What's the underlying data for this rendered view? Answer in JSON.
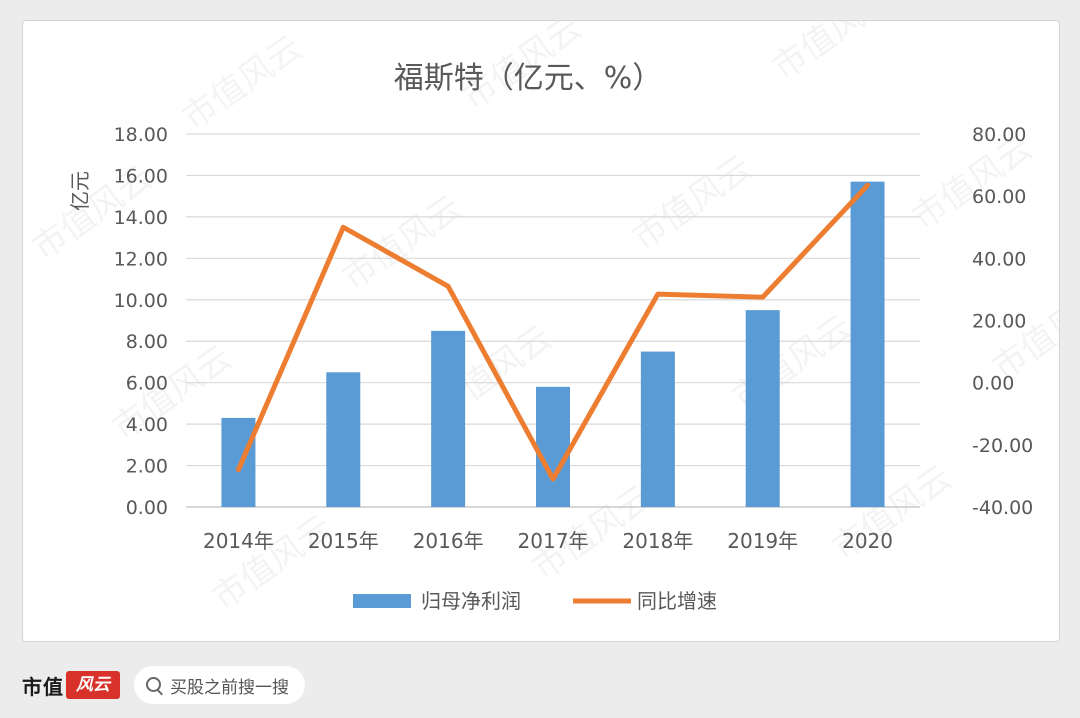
{
  "chart_data": {
    "type": "bar",
    "title": "福斯特（亿元、%）",
    "ylabel": "亿元",
    "y2label": "",
    "categories": [
      "2014年",
      "2015年",
      "2016年",
      "2017年",
      "2018年",
      "2019年",
      "2020"
    ],
    "ylim": [
      0,
      18
    ],
    "yticks": [
      "0.00",
      "2.00",
      "4.00",
      "6.00",
      "8.00",
      "10.00",
      "12.00",
      "14.00",
      "16.00",
      "18.00"
    ],
    "y2lim": [
      -40,
      80
    ],
    "y2ticks": [
      "-40.00",
      "-20.00",
      "0.00",
      "20.00",
      "40.00",
      "60.00",
      "80.00"
    ],
    "grid": true,
    "legend_position": "bottom",
    "series": [
      {
        "name": "归母净利润",
        "type": "bar",
        "axis": "left",
        "color": "#5b9bd5",
        "values": [
          4.3,
          6.5,
          8.5,
          5.8,
          7.5,
          9.5,
          15.7
        ]
      },
      {
        "name": "同比增速",
        "type": "line",
        "axis": "right",
        "color": "#ed7d31",
        "values": [
          -28,
          50,
          31,
          -31,
          28.5,
          27.5,
          63.5
        ]
      }
    ]
  },
  "watermark": "市值风云",
  "footer": {
    "brand": "市值",
    "brand_logo": "风云",
    "search_placeholder": "买股之前搜一搜"
  }
}
